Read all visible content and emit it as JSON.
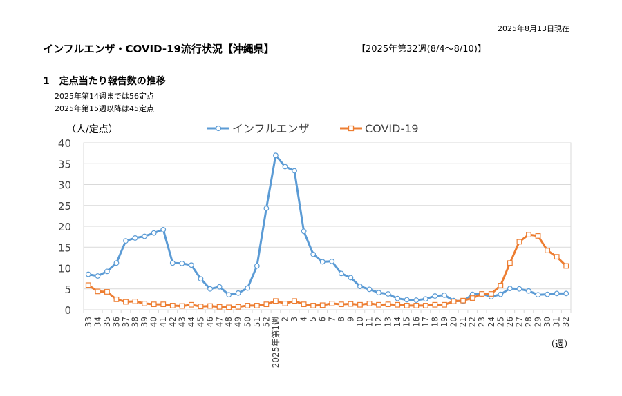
{
  "header": {
    "report_date": "2025年8月13日現在",
    "title": "インフルエンザ・COVID-19流行状況【沖縄県】",
    "week_range": "【2025年第32週(8/4～8/10)】"
  },
  "section": {
    "title": "1　定点当たり報告数の推移",
    "notes": [
      "2025年第14週までは56定点",
      "2025年第15週以降は45定点"
    ]
  },
  "chart_data": {
    "type": "line",
    "xlabel": "（週）",
    "ylabel": "（人/定点）",
    "ylim": [
      0,
      40
    ],
    "yticks": [
      0,
      5,
      10,
      15,
      20,
      25,
      30,
      35,
      40
    ],
    "grid": true,
    "legend_position": "top",
    "categories": [
      "33",
      "34",
      "35",
      "36",
      "37",
      "38",
      "39",
      "40",
      "41",
      "42",
      "43",
      "44",
      "45",
      "46",
      "47",
      "48",
      "49",
      "50",
      "51",
      "52",
      "2025年第1週",
      "2",
      "3",
      "4",
      "5",
      "6",
      "7",
      "8",
      "9",
      "10",
      "11",
      "12",
      "13",
      "14",
      "15",
      "16",
      "17",
      "18",
      "19",
      "20",
      "21",
      "22",
      "23",
      "24",
      "25",
      "26",
      "27",
      "28",
      "29",
      "30",
      "31",
      "32"
    ],
    "series": [
      {
        "name": "インフルエンザ",
        "color": "#5b9bd5",
        "values": [
          8.5,
          8.1,
          9.2,
          11.2,
          16.5,
          17.2,
          17.6,
          18.4,
          19.2,
          11.2,
          11.1,
          10.7,
          7.4,
          5.0,
          5.5,
          3.6,
          4.0,
          5.2,
          10.5,
          24.3,
          37.0,
          34.3,
          33.3,
          18.8,
          13.3,
          11.5,
          11.6,
          8.7,
          7.7,
          5.6,
          4.9,
          4.1,
          3.8,
          2.7,
          2.4,
          2.3,
          2.6,
          3.3,
          3.5,
          2.2,
          2.0,
          3.7,
          3.8,
          3.1,
          3.7,
          5.1,
          5.0,
          4.5,
          3.6,
          3.7,
          3.9,
          3.9
        ]
      },
      {
        "name": "COVID-19",
        "color": "#ed7d31",
        "values": [
          5.9,
          4.4,
          4.3,
          2.5,
          1.9,
          2.0,
          1.5,
          1.3,
          1.3,
          1.0,
          0.9,
          1.2,
          0.8,
          0.9,
          0.7,
          0.6,
          0.7,
          1.0,
          1.0,
          1.3,
          2.1,
          1.5,
          2.1,
          1.3,
          1.0,
          1.1,
          1.5,
          1.3,
          1.4,
          1.2,
          1.5,
          1.2,
          1.3,
          1.2,
          1.0,
          1.0,
          1.0,
          1.2,
          1.2,
          2.0,
          2.2,
          2.8,
          3.8,
          3.8,
          5.8,
          11.2,
          16.3,
          18.0,
          17.7,
          14.2,
          12.7,
          10.5
        ]
      }
    ]
  }
}
